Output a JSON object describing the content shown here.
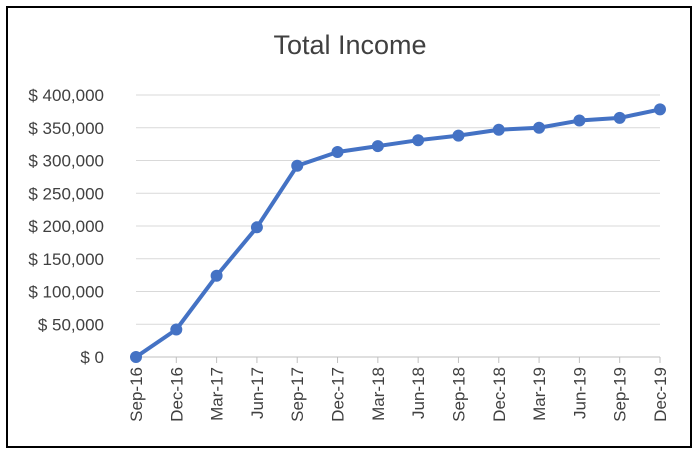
{
  "chart_data": {
    "type": "line",
    "title": "Total Income",
    "xlabel": "",
    "ylabel": "",
    "categories": [
      "Sep-16",
      "Dec-16",
      "Mar-17",
      "Jun-17",
      "Sep-17",
      "Dec-17",
      "Mar-18",
      "Jun-18",
      "Sep-18",
      "Dec-18",
      "Mar-19",
      "Jun-19",
      "Sep-19",
      "Dec-19"
    ],
    "series": [
      {
        "values": [
          0,
          42000,
          124000,
          198000,
          292000,
          313000,
          322000,
          331000,
          338000,
          347000,
          350000,
          361000,
          365000,
          378000
        ]
      }
    ],
    "ylim": [
      0,
      400000
    ],
    "yticks": [
      0,
      50000,
      100000,
      150000,
      200000,
      250000,
      300000,
      350000,
      400000
    ],
    "ytick_labels": [
      "$ 0",
      "$ 50,000",
      "$ 100,000",
      "$ 150,000",
      "$ 200,000",
      "$ 250,000",
      "$ 300,000",
      "$ 350,000",
      "$ 400,000"
    ],
    "grid": true,
    "legend": "none",
    "colors": {
      "line": "#4472C4",
      "grid": "#D9D9D9",
      "text": "#404040"
    }
  }
}
